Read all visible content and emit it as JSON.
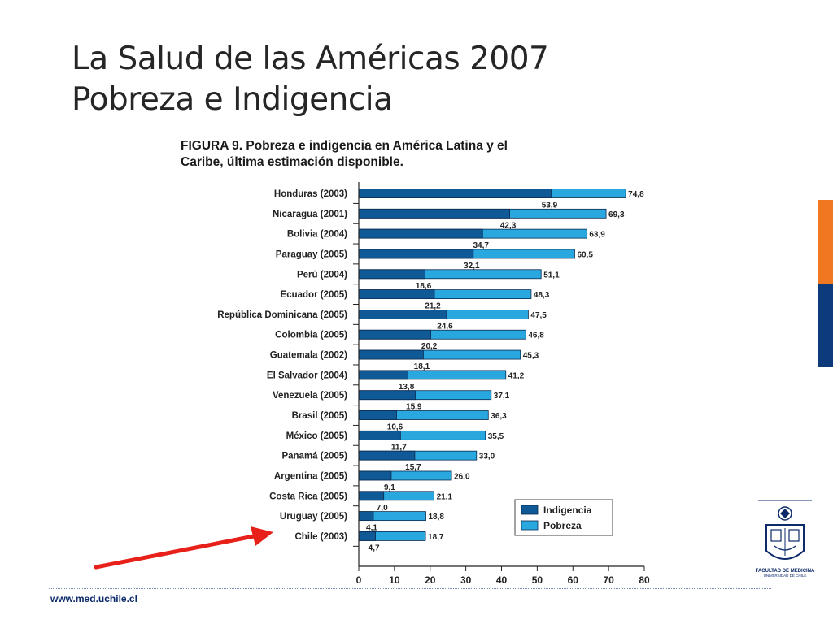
{
  "slide": {
    "title_line1": "La Salud de las Américas 2007",
    "title_line2": "Pobreza e Indigencia",
    "footer_url": "www.med.uchile.cl",
    "logo_line1": "FACULTAD DE MEDICINA",
    "logo_line2": "UNIVERSIDAD DE CHILE",
    "accent_colors": [
      "#f07820",
      "#0d3a7a"
    ]
  },
  "chart_data": {
    "type": "bar",
    "orientation": "horizontal",
    "title_line1": "FIGURA 9.  Pobreza e indigencia en América Latina y el",
    "title_line2": "Caribe, última estimación disponible.",
    "categories": [
      "Honduras (2003)",
      "Nicaragua (2001)",
      "Bolivia (2004)",
      "Paraguay (2005)",
      "Perú (2004)",
      "Ecuador (2005)",
      "República Dominicana (2005)",
      "Colombia (2005)",
      "Guatemala (2002)",
      "El Salvador (2004)",
      "Venezuela (2005)",
      "Brasil (2005)",
      "México (2005)",
      "Panamá (2005)",
      "Argentina (2005)",
      "Costa Rica (2005)",
      "Uruguay (2005)",
      "Chile (2003)"
    ],
    "series": [
      {
        "name": "Indigencia",
        "color": "#0f5a96",
        "values": [
          53.9,
          42.3,
          34.7,
          32.1,
          18.6,
          21.2,
          24.6,
          20.2,
          18.1,
          13.8,
          15.9,
          10.6,
          11.7,
          15.7,
          9.1,
          7.0,
          4.1,
          4.7
        ],
        "labels": [
          "53,9",
          "42,3",
          "34,7",
          "32,1",
          "18,6",
          "21,2",
          "24,6",
          "20,2",
          "18,1",
          "13,8",
          "15,9",
          "10,6",
          "11,7",
          "15,7",
          "9,1",
          "7,0",
          "4,1",
          "4,7"
        ]
      },
      {
        "name": "Pobreza",
        "color": "#29a8e0",
        "values": [
          74.8,
          69.3,
          63.9,
          60.5,
          51.1,
          48.3,
          47.5,
          46.8,
          45.3,
          41.2,
          37.1,
          36.3,
          35.5,
          33.0,
          26.0,
          21.1,
          18.8,
          18.7
        ],
        "labels": [
          "74,8",
          "69,3",
          "63,9",
          "60,5",
          "51,1",
          "48,3",
          "47,5",
          "46,8",
          "45,3",
          "41,2",
          "37,1",
          "36,3",
          "35,5",
          "33,0",
          "26,0",
          "21,1",
          "18,8",
          "18,7"
        ]
      }
    ],
    "xlim": [
      0,
      80
    ],
    "x_ticks": [
      0,
      10,
      20,
      30,
      40,
      50,
      60,
      70,
      80
    ],
    "legend": [
      "Indigencia",
      "Pobreza"
    ],
    "legend_placement": "bottom-right",
    "grid": false,
    "annotation": "red arrow pointing to Chile (2003)",
    "annotation_color": "#e8201a"
  }
}
